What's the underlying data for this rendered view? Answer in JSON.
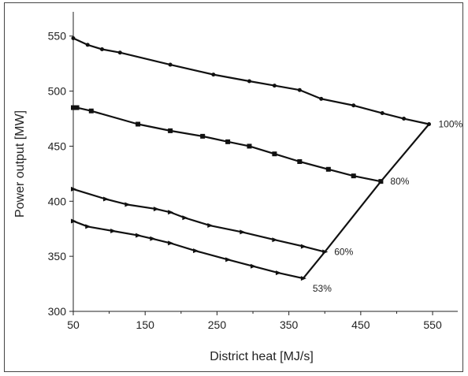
{
  "chart_data": {
    "type": "line",
    "title": "",
    "xlabel": "District heat [MJ/s]",
    "ylabel": "Power output [MW]",
    "xlim": [
      50,
      585
    ],
    "ylim": [
      300,
      572
    ],
    "xticks": [
      50,
      150,
      250,
      350,
      450,
      550
    ],
    "yticks": [
      300,
      350,
      400,
      450,
      500,
      550
    ],
    "grid": false,
    "series": [
      {
        "name": "100%",
        "marker": "dot",
        "x": [
          50,
          70,
          90,
          115,
          185,
          245,
          295,
          330,
          365,
          395,
          440,
          480,
          510,
          545
        ],
        "y": [
          548,
          542,
          538,
          535,
          524,
          515,
          509,
          505,
          501,
          493,
          487,
          480,
          475,
          470
        ]
      },
      {
        "name": "80%",
        "marker": "square",
        "x": [
          50,
          55,
          75,
          140,
          185,
          230,
          265,
          295,
          330,
          365,
          405,
          440,
          478
        ],
        "y": [
          485,
          485,
          482,
          470,
          464,
          459,
          454,
          450,
          443,
          436,
          429,
          423,
          418
        ]
      },
      {
        "name": "60%",
        "marker": "triangle",
        "x": [
          50,
          95,
          125,
          165,
          185,
          205,
          240,
          285,
          330,
          370,
          400
        ],
        "y": [
          411,
          402,
          397,
          393,
          390,
          385,
          378,
          372,
          365,
          359,
          354
        ]
      },
      {
        "name": "53%",
        "marker": "triangle",
        "x": [
          50,
          70,
          105,
          140,
          160,
          185,
          220,
          265,
          300,
          335,
          370
        ],
        "y": [
          382,
          377,
          373,
          369,
          366,
          362,
          355,
          347,
          341,
          335,
          330
        ]
      }
    ],
    "boundary": {
      "x": [
        370,
        400,
        478,
        545
      ],
      "y": [
        330,
        354,
        418,
        470
      ]
    },
    "series_labels": [
      "100%",
      "80%",
      "60%",
      "53%"
    ]
  }
}
